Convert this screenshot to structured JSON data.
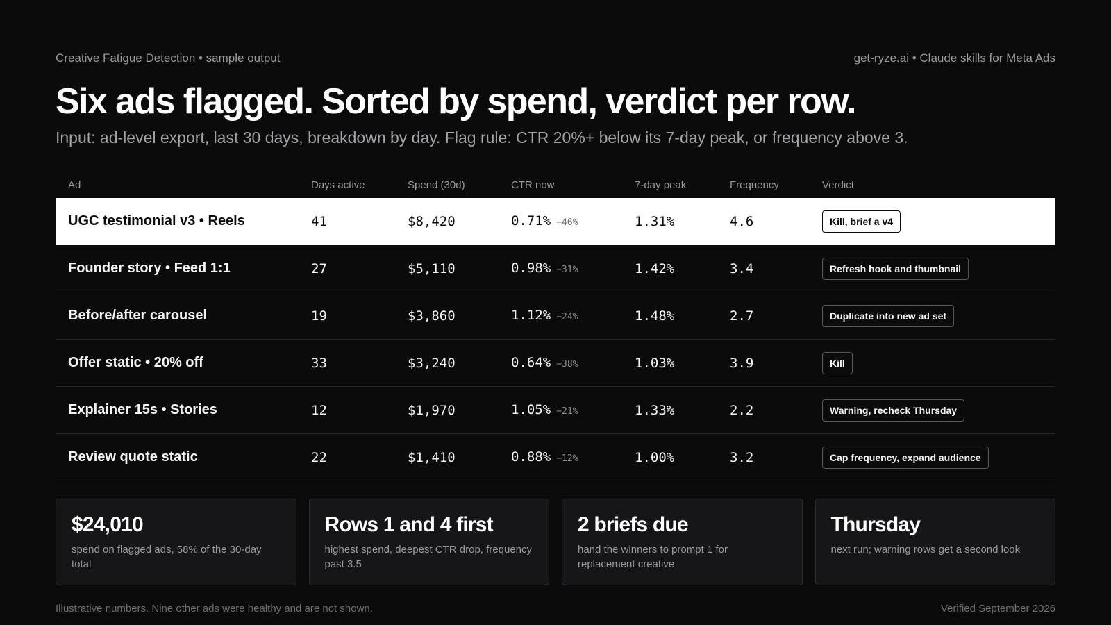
{
  "header": {
    "left": "Creative Fatigue Detection • sample output",
    "right": "get-ryze.ai • Claude skills for Meta Ads"
  },
  "headline": "Six ads flagged. Sorted by spend, verdict per row.",
  "subhead": "Input: ad-level export, last 30 days, breakdown by day. Flag rule: CTR 20%+ below its 7-day peak, or frequency above 3.",
  "table": {
    "columns": [
      "Ad",
      "Days active",
      "Spend (30d)",
      "CTR now",
      "7-day peak",
      "Frequency",
      "Verdict"
    ],
    "rows": [
      {
        "ad": "UGC testimonial v3 • Reels",
        "days": "41",
        "spend": "$8,420",
        "ctr": "0.71%",
        "delta": "−46%",
        "peak": "1.31%",
        "freq": "4.6",
        "verdict": "Kill, brief a v4"
      },
      {
        "ad": "Founder story • Feed 1:1",
        "days": "27",
        "spend": "$5,110",
        "ctr": "0.98%",
        "delta": "−31%",
        "peak": "1.42%",
        "freq": "3.4",
        "verdict": "Refresh hook and thumbnail"
      },
      {
        "ad": "Before/after carousel",
        "days": "19",
        "spend": "$3,860",
        "ctr": "1.12%",
        "delta": "−24%",
        "peak": "1.48%",
        "freq": "2.7",
        "verdict": "Duplicate into new ad set"
      },
      {
        "ad": "Offer static • 20% off",
        "days": "33",
        "spend": "$3,240",
        "ctr": "0.64%",
        "delta": "−38%",
        "peak": "1.03%",
        "freq": "3.9",
        "verdict": "Kill"
      },
      {
        "ad": "Explainer 15s • Stories",
        "days": "12",
        "spend": "$1,970",
        "ctr": "1.05%",
        "delta": "−21%",
        "peak": "1.33%",
        "freq": "2.2",
        "verdict": "Warning, recheck Thursday"
      },
      {
        "ad": "Review quote static",
        "days": "22",
        "spend": "$1,410",
        "ctr": "0.88%",
        "delta": "−12%",
        "peak": "1.00%",
        "freq": "3.2",
        "verdict": "Cap frequency, expand audience"
      }
    ]
  },
  "cards": [
    {
      "value": "$24,010",
      "desc": "spend on flagged ads, 58% of the 30-day total"
    },
    {
      "value": "Rows 1 and 4 first",
      "desc": "highest spend, deepest CTR drop, frequency past 3.5"
    },
    {
      "value": "2 briefs due",
      "desc": "hand the winners to prompt 1 for replacement creative"
    },
    {
      "value": "Thursday",
      "desc": "next run; warning rows get a second look"
    }
  ],
  "footer": {
    "left": "Illustrative numbers. Nine other ads were healthy and are not shown.",
    "right": "Verified September 2026"
  },
  "colors": {
    "background": "#0b0b0c",
    "highlight_row": "#ffffff",
    "card_bg": "#161618"
  }
}
